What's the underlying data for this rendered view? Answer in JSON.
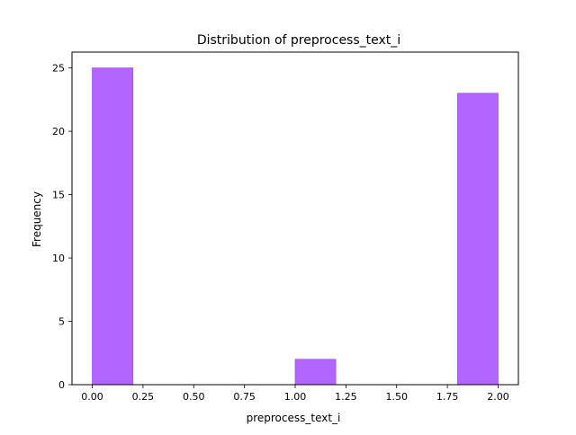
{
  "chart_data": {
    "type": "bar",
    "title": "Distribution of  preprocess_text_i",
    "xlabel": "preprocess_text_i",
    "ylabel": "Frequency",
    "bins": [
      {
        "start": 0.0,
        "end": 0.2,
        "count": 25
      },
      {
        "start": 0.2,
        "end": 0.4,
        "count": 0
      },
      {
        "start": 0.4,
        "end": 0.6,
        "count": 0
      },
      {
        "start": 0.6,
        "end": 0.8,
        "count": 0
      },
      {
        "start": 0.8,
        "end": 1.0,
        "count": 0
      },
      {
        "start": 1.0,
        "end": 1.2,
        "count": 2
      },
      {
        "start": 1.2,
        "end": 1.4,
        "count": 0
      },
      {
        "start": 1.4,
        "end": 1.6,
        "count": 0
      },
      {
        "start": 1.6,
        "end": 1.8,
        "count": 0
      },
      {
        "start": 1.8,
        "end": 2.0,
        "count": 23
      }
    ],
    "xlim": [
      -0.1,
      2.1
    ],
    "ylim": [
      0,
      26.25
    ],
    "xticks": [
      0.0,
      0.25,
      0.5,
      0.75,
      1.0,
      1.25,
      1.5,
      1.75,
      2.0
    ],
    "xtick_labels": [
      "0.00",
      "0.25",
      "0.50",
      "0.75",
      "1.00",
      "1.25",
      "1.50",
      "1.75",
      "2.00"
    ],
    "yticks": [
      0,
      5,
      10,
      15,
      20,
      25
    ],
    "ytick_labels": [
      "0",
      "5",
      "10",
      "15",
      "20",
      "25"
    ],
    "grid": false,
    "bar_color": "#b366ff",
    "bar_edge_color": "#a64dff"
  }
}
